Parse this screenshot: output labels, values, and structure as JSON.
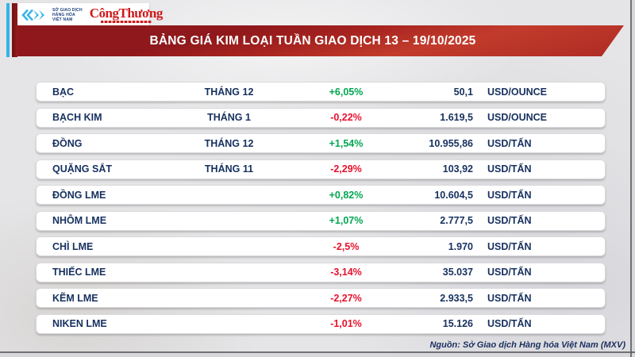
{
  "header": {
    "mxv_text_lines": [
      "SỞ GIAO DỊCH",
      "HÀNG HÓA",
      "VIỆT NAM"
    ],
    "congthuong_logo": "CôngThương",
    "title": "BẢNG GIÁ KIM LOẠI TUẦN GIAO DỊCH 13 – 19/10/2025"
  },
  "chart_data": {
    "type": "table",
    "title": "BẢNG GIÁ KIM LOẠI TUẦN GIAO DỊCH 13 – 19/10/2025",
    "columns": [
      "name",
      "month",
      "change",
      "price",
      "unit"
    ],
    "rows": [
      {
        "name": "BẠC",
        "month": "THÁNG 12",
        "change": "+6,05%",
        "direction": "up",
        "price": "50,1",
        "unit": "USD/OUNCE"
      },
      {
        "name": "BẠCH KIM",
        "month": "THÁNG 1",
        "change": "-0,22%",
        "direction": "down",
        "price": "1.619,5",
        "unit": "USD/OUNCE"
      },
      {
        "name": "ĐỒNG",
        "month": "THÁNG 12",
        "change": "+1,54%",
        "direction": "up",
        "price": "10.955,86",
        "unit": "USD/TẤN"
      },
      {
        "name": "QUẶNG SẮT",
        "month": "THÁNG 11",
        "change": "-2,29%",
        "direction": "down",
        "price": "103,92",
        "unit": "USD/TẤN"
      },
      {
        "name": "ĐỒNG LME",
        "month": "",
        "change": "+0,82%",
        "direction": "up",
        "price": "10.604,5",
        "unit": "USD/TẤN"
      },
      {
        "name": "NHÔM LME",
        "month": "",
        "change": "+1,07%",
        "direction": "up",
        "price": "2.777,5",
        "unit": "USD/TẤN"
      },
      {
        "name": "CHÌ LME",
        "month": "",
        "change": "-2,5%",
        "direction": "down",
        "price": "1.970",
        "unit": "USD/TẤN"
      },
      {
        "name": "THIẾC LME",
        "month": "",
        "change": "-3,14%",
        "direction": "down",
        "price": "35.037",
        "unit": "USD/TẤN"
      },
      {
        "name": "KẼM LME",
        "month": "",
        "change": "-2,27%",
        "direction": "down",
        "price": "2.933,5",
        "unit": "USD/TẤN"
      },
      {
        "name": "NIKEN LME",
        "month": "",
        "change": "-1,01%",
        "direction": "down",
        "price": "15.126",
        "unit": "USD/TẤN"
      }
    ]
  },
  "footer": {
    "source": "Nguồn: Sở Giao dịch Hàng hóa Việt Nam (MXV)"
  },
  "colors": {
    "up_green": "#00A651",
    "down_red": "#E8112D",
    "text_navy": "#16305F",
    "banner_red": "#A5221F",
    "accent_cyan": "#35B4E5"
  }
}
